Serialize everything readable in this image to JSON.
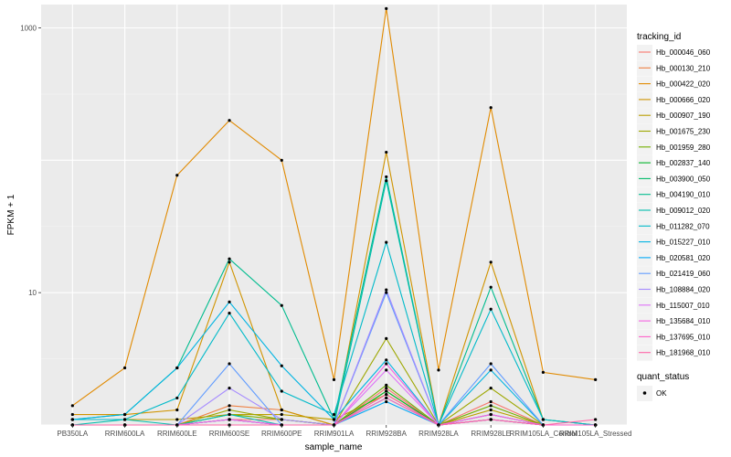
{
  "chart_data": {
    "type": "line",
    "title": "",
    "xlabel": "sample_name",
    "ylabel": "FPKM + 1",
    "y_scale": "log10",
    "ylim": [
      1,
      1500
    ],
    "y_ticks": [
      {
        "value": 10,
        "label": "10"
      },
      {
        "value": 1000,
        "label": "1000"
      }
    ],
    "grid": true,
    "categories": [
      "PB350LA",
      "RRIM600LA",
      "RRIM600LE",
      "RRIM600SE",
      "RRIM600PE",
      "RRIM901LA",
      "RRIM928BA",
      "RRIM928LA",
      "RRIM928LE",
      "RRIM105LA_Control",
      "RRIM105LA_Stressed"
    ],
    "legend": {
      "position": "right",
      "title": "tracking_id",
      "status_title": "quant_status",
      "status_entries": [
        "OK"
      ]
    },
    "series": [
      {
        "name": "Hb_000046_060",
        "color": "#F8766D",
        "values": [
          1.0,
          1.0,
          1.0,
          1.1,
          1.1,
          1.0,
          1.9,
          1.0,
          1.5,
          1.0,
          1.0
        ]
      },
      {
        "name": "Hb_000130_210",
        "color": "#EE8043",
        "values": [
          1.0,
          1.0,
          1.0,
          1.4,
          1.3,
          1.0,
          1.8,
          1.0,
          1.1,
          1.0,
          1.0
        ]
      },
      {
        "name": "Hb_000422_020",
        "color": "#E18A00",
        "values": [
          1.4,
          2.7,
          77.0,
          200.0,
          100.0,
          2.2,
          1400.0,
          2.6,
          250.0,
          2.5,
          2.2
        ]
      },
      {
        "name": "Hb_000666_020",
        "color": "#D09400",
        "values": [
          1.2,
          1.2,
          1.3,
          17.0,
          1.3,
          1.0,
          115.0,
          1.0,
          17.0,
          1.1,
          1.0
        ]
      },
      {
        "name": "Hb_000907_190",
        "color": "#BA9E00",
        "values": [
          1.1,
          1.1,
          1.1,
          1.2,
          1.2,
          1.1,
          1.7,
          1.0,
          1.3,
          1.0,
          1.0
        ]
      },
      {
        "name": "Hb_001675_230",
        "color": "#9DA700",
        "values": [
          1.0,
          1.0,
          1.0,
          1.3,
          1.1,
          1.0,
          4.5,
          1.0,
          1.9,
          1.0,
          1.0
        ]
      },
      {
        "name": "Hb_001959_280",
        "color": "#72AF00",
        "values": [
          1.0,
          1.0,
          1.0,
          1.2,
          1.1,
          1.0,
          2.0,
          1.0,
          1.4,
          1.0,
          1.0
        ]
      },
      {
        "name": "Hb_002837_140",
        "color": "#00B529",
        "values": [
          1.0,
          1.0,
          1.0,
          1.1,
          1.0,
          1.0,
          1.8,
          1.0,
          1.2,
          1.0,
          1.0
        ]
      },
      {
        "name": "Hb_003900_050",
        "color": "#00BA68",
        "values": [
          1.0,
          1.0,
          1.0,
          1.1,
          1.0,
          1.0,
          1.6,
          1.0,
          1.1,
          1.0,
          1.0
        ]
      },
      {
        "name": "Hb_004190_010",
        "color": "#00BC8E",
        "values": [
          1.1,
          1.2,
          2.7,
          18.0,
          8.0,
          1.1,
          75.0,
          1.0,
          11.0,
          1.1,
          1.0
        ]
      },
      {
        "name": "Hb_009012_020",
        "color": "#00BDAD",
        "values": [
          1.0,
          1.1,
          1.0,
          1.2,
          1.0,
          1.0,
          70.0,
          1.0,
          1.1,
          1.0,
          1.0
        ]
      },
      {
        "name": "Hb_011282_070",
        "color": "#00BAC9",
        "values": [
          1.1,
          1.1,
          1.6,
          7.0,
          1.8,
          1.2,
          24.0,
          1.0,
          7.5,
          1.1,
          1.0
        ]
      },
      {
        "name": "Hb_015227_010",
        "color": "#00B4E2",
        "values": [
          1.1,
          1.2,
          2.7,
          8.5,
          2.8,
          1.1,
          3.1,
          1.0,
          2.6,
          1.0,
          1.0
        ]
      },
      {
        "name": "Hb_020581_020",
        "color": "#00A9F7",
        "values": [
          1.0,
          1.0,
          1.0,
          1.1,
          1.0,
          1.0,
          1.5,
          1.0,
          1.1,
          1.0,
          1.0
        ]
      },
      {
        "name": "Hb_021419_060",
        "color": "#619CFF",
        "values": [
          1.0,
          1.0,
          1.0,
          2.9,
          1.0,
          1.0,
          10.0,
          1.0,
          2.9,
          1.0,
          1.0
        ]
      },
      {
        "name": "Hb_108884_020",
        "color": "#A58AFF",
        "values": [
          1.0,
          1.0,
          1.0,
          1.9,
          1.1,
          1.0,
          10.5,
          1.0,
          1.2,
          1.0,
          1.0
        ]
      },
      {
        "name": "Hb_115007_010",
        "color": "#DF70F8",
        "values": [
          1.0,
          1.0,
          1.0,
          1.1,
          1.0,
          1.0,
          2.6,
          1.0,
          1.1,
          1.0,
          1.0
        ]
      },
      {
        "name": "Hb_135684_010",
        "color": "#F563E3",
        "values": [
          1.0,
          1.0,
          1.0,
          1.1,
          1.0,
          1.0,
          2.9,
          1.0,
          1.2,
          1.0,
          1.0
        ]
      },
      {
        "name": "Hb_137695_010",
        "color": "#FF61C9",
        "values": [
          1.0,
          1.0,
          1.0,
          1.0,
          1.0,
          1.0,
          1.6,
          1.0,
          1.1,
          1.0,
          1.0
        ]
      },
      {
        "name": "Hb_181968_010",
        "color": "#FF65A7",
        "values": [
          1.0,
          1.0,
          1.0,
          1.0,
          1.0,
          1.0,
          1.7,
          1.0,
          1.1,
          1.0,
          1.1
        ]
      }
    ]
  }
}
